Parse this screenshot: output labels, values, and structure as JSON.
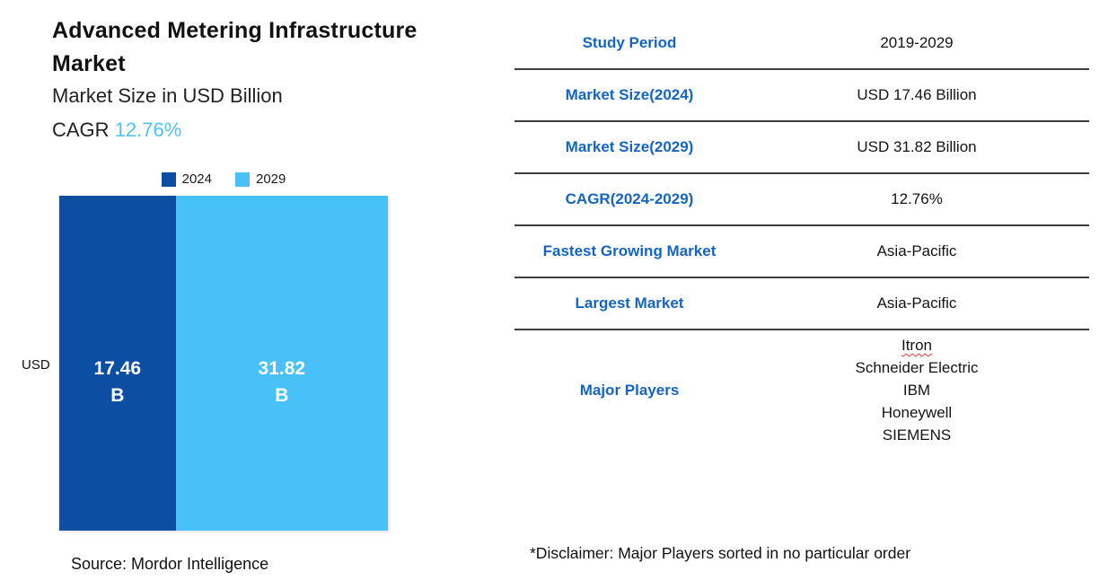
{
  "header": {
    "title_line1": "Advanced Metering Infrastructure",
    "title_line2": "Market",
    "subtitle": "Market Size in USD Billion",
    "cagr_label": "CAGR ",
    "cagr_value": "12.76%"
  },
  "legend": {
    "items": [
      {
        "label": "2024",
        "color": "#0b4ea2"
      },
      {
        "label": "2029",
        "color": "#47c1f7"
      }
    ]
  },
  "chart_data": {
    "type": "bar",
    "title": "Advanced Metering Infrastructure Market",
    "subtitle": "Market Size in USD Billion",
    "categories": [
      "2024",
      "2029"
    ],
    "values": [
      17.46,
      31.82
    ],
    "labels": [
      "17.46",
      "31.82"
    ],
    "unit_suffix": "B",
    "unit": "USD Billion",
    "ylabel": "USD",
    "colors": [
      "#0b4ea2",
      "#47c1f7"
    ],
    "legend_position": "top",
    "orientation": "width-proportional-columns",
    "grid": false
  },
  "axis": {
    "y_label": "USD"
  },
  "source": "Source: Mordor Intelligence",
  "table": {
    "rows": [
      {
        "label": "Study Period",
        "value": "2019-2029"
      },
      {
        "label": "Market Size(2024)",
        "value": "USD 17.46 Billion"
      },
      {
        "label": "Market Size(2029)",
        "value": "USD 31.82 Billion"
      },
      {
        "label": "CAGR(2024-2029)",
        "value": "12.76%"
      },
      {
        "label": "Fastest Growing Market",
        "value": "Asia-Pacific"
      },
      {
        "label": "Largest Market",
        "value": "Asia-Pacific"
      }
    ],
    "major_players": {
      "label": "Major Players",
      "players": [
        "Itron",
        "Schneider Electric",
        "IBM",
        "Honeywell",
        "SIEMENS"
      ]
    },
    "disclaimer": "*Disclaimer: Major Players sorted in no particular order"
  },
  "colors": {
    "accent_blue": "#1565c0",
    "cagr_highlight": "#4fc3f7",
    "bar_2024": "#0b4ea2",
    "bar_2029": "#47c1f7",
    "divider": "#3d3d3d",
    "text_dark": "#111111"
  }
}
